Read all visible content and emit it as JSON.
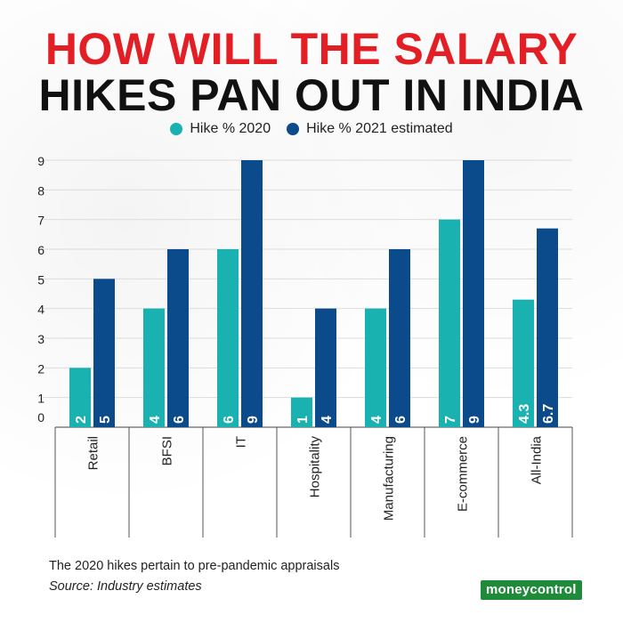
{
  "title": {
    "line1": "HOW WILL THE SALARY",
    "line2": "HIKES PAN OUT IN INDIA"
  },
  "legend": [
    {
      "label": "Hike % 2020",
      "color": "#1ab2b0"
    },
    {
      "label": "Hike % 2021 estimated",
      "color": "#0b4a8b"
    }
  ],
  "notes": {
    "line1": "The 2020 hikes pertain to pre-pandemic appraisals",
    "line2": "Source: Industry estimates"
  },
  "brand": "moneycontrol",
  "chart_data": {
    "type": "bar",
    "categories": [
      "Retail",
      "BFSI",
      "IT",
      "Hospitality",
      "Manufacturing",
      "E-commerce",
      "All-India"
    ],
    "series": [
      {
        "name": "Hike % 2020",
        "values": [
          2,
          4,
          6,
          1,
          4,
          7,
          4.3
        ],
        "color": "#1ab2b0"
      },
      {
        "name": "Hike % 2021 estimated",
        "values": [
          5,
          6,
          9,
          4,
          6,
          9,
          6.7
        ],
        "color": "#0b4a8b"
      }
    ],
    "data_labels": [
      [
        "2",
        "4",
        "6",
        "1",
        "4",
        "7",
        "4.3"
      ],
      [
        "5",
        "6",
        "9",
        "4",
        "6",
        "9",
        "6.7"
      ]
    ],
    "yticks": [
      0,
      1,
      2,
      3,
      4,
      5,
      6,
      7,
      8,
      9
    ],
    "ylim": [
      0,
      9
    ],
    "grid": true,
    "legend_position": "top-center",
    "xlabel": "",
    "ylabel": ""
  }
}
